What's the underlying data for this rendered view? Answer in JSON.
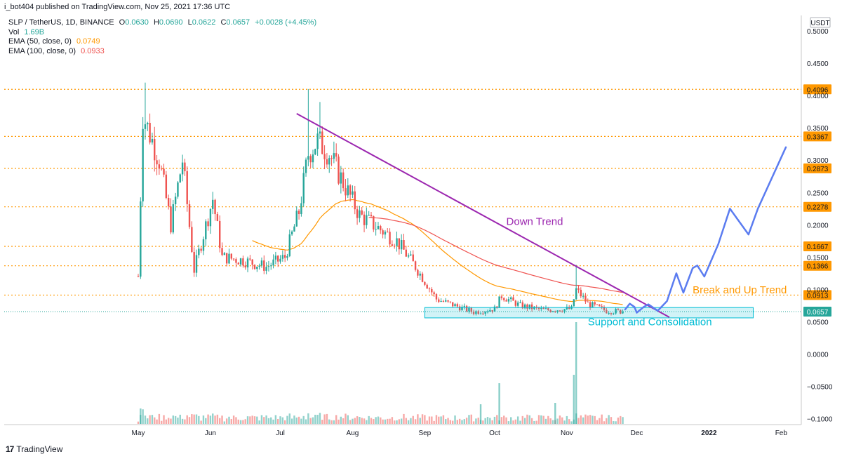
{
  "header": {
    "published_by": "i_bot404 published on TradingView.com, Nov 25, 2021 17:36 UTC"
  },
  "legend": {
    "symbol_line": "SLP / TetherUS, 1D, BINANCE",
    "open_label": "O",
    "open": "0.0630",
    "high_label": "H",
    "high": "0.0690",
    "low_label": "L",
    "low": "0.0622",
    "close_label": "C",
    "close": "0.0657",
    "change": "+0.0028 (+4.45%)",
    "vol_label": "Vol",
    "vol": "1.69B",
    "ema50_label": "EMA (50, close, 0)",
    "ema50": "0.0749",
    "ema100_label": "EMA (100, close, 0)",
    "ema100": "0.0933"
  },
  "footer": {
    "brand": "TradingView",
    "mark": "17"
  },
  "colors": {
    "up": "#26a69a",
    "down": "#ef5350",
    "ema50": "#ff9800",
    "ema100": "#ef5350",
    "level": "#ff9800",
    "trend": "#9c27b0",
    "projection": "#5b7cf0",
    "support": "#00bcd4"
  },
  "chart_data": {
    "type": "candlestick",
    "symbol": "SLP / TetherUS",
    "interval": "1D",
    "exchange": "BINANCE",
    "currency_label": "USDT",
    "y_ticks": [
      "0.5000",
      "0.4500",
      "0.4000",
      "0.3500",
      "0.3000",
      "0.2500",
      "0.2000",
      "0.1500",
      "0.1000",
      "0.0500",
      "0.0000",
      "−0.0500",
      "−0.1000"
    ],
    "y_tick_values": [
      0.5,
      0.45,
      0.4,
      0.35,
      0.3,
      0.25,
      0.2,
      0.15,
      0.1,
      0.05,
      0,
      -0.05,
      -0.1
    ],
    "x_ticks": [
      "May",
      "Jun",
      "Jul",
      "Aug",
      "Sep",
      "Oct",
      "Nov",
      "Dec",
      "2022",
      "Feb"
    ],
    "x_tick_dates": [
      "2021-05-01",
      "2021-06-01",
      "2021-07-01",
      "2021-08-01",
      "2021-09-01",
      "2021-10-01",
      "2021-11-01",
      "2021-12-01",
      "2022-01-01",
      "2022-02-01"
    ],
    "levels": [
      "0.4096",
      "0.3367",
      "0.2873",
      "0.2278",
      "0.1667",
      "0.1366",
      "0.0913"
    ],
    "last_price": "0.0657",
    "annotations": {
      "down_trend": "Down Trend",
      "break_up": "Break and Up Trend",
      "support": "Support and Consolidation"
    },
    "key_points": [
      {
        "date": "2021-05-01",
        "close": 0.12
      },
      {
        "date": "2021-05-03",
        "close": 0.37
      },
      {
        "date": "2021-05-10",
        "close": 0.3
      },
      {
        "date": "2021-05-15",
        "close": 0.2
      },
      {
        "date": "2021-05-20",
        "close": 0.3
      },
      {
        "date": "2021-05-25",
        "close": 0.13
      },
      {
        "date": "2021-06-02",
        "close": 0.24
      },
      {
        "date": "2021-06-06",
        "close": 0.15
      },
      {
        "date": "2021-06-15",
        "close": 0.145
      },
      {
        "date": "2021-06-25",
        "close": 0.135
      },
      {
        "date": "2021-07-03",
        "close": 0.15
      },
      {
        "date": "2021-07-09",
        "close": 0.22
      },
      {
        "date": "2021-07-13",
        "close": 0.31
      },
      {
        "date": "2021-07-17",
        "close": 0.33
      },
      {
        "date": "2021-07-22",
        "close": 0.31
      },
      {
        "date": "2021-07-28",
        "close": 0.265
      },
      {
        "date": "2021-08-04",
        "close": 0.215
      },
      {
        "date": "2021-08-12",
        "close": 0.195
      },
      {
        "date": "2021-08-20",
        "close": 0.175
      },
      {
        "date": "2021-08-28",
        "close": 0.135
      },
      {
        "date": "2021-09-06",
        "close": 0.085
      },
      {
        "date": "2021-09-14",
        "close": 0.075
      },
      {
        "date": "2021-09-22",
        "close": 0.065
      },
      {
        "date": "2021-10-01",
        "close": 0.07
      },
      {
        "date": "2021-10-04",
        "close": 0.09
      },
      {
        "date": "2021-10-12",
        "close": 0.075
      },
      {
        "date": "2021-10-22",
        "close": 0.068
      },
      {
        "date": "2021-11-03",
        "close": 0.07
      },
      {
        "date": "2021-11-05",
        "close": 0.1
      },
      {
        "date": "2021-11-10",
        "close": 0.078
      },
      {
        "date": "2021-11-18",
        "close": 0.067
      },
      {
        "date": "2021-11-25",
        "close": 0.0657
      }
    ]
  }
}
